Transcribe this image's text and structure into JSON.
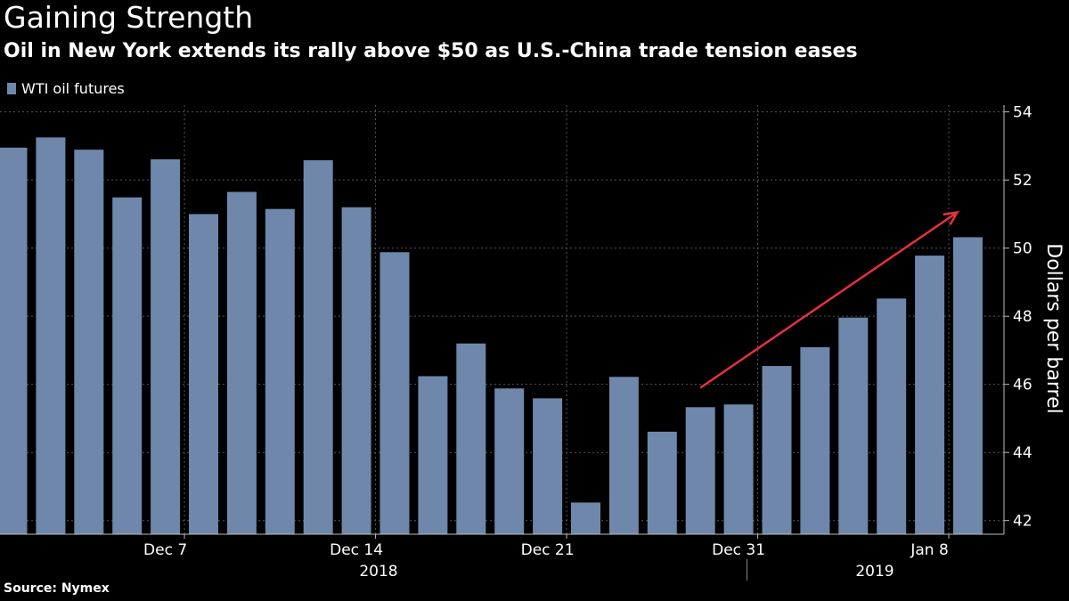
{
  "title": "Gaining Strength",
  "subtitle": "Oil in New York extends its rally above $50 as U.S.-China trade tension eases",
  "source": "Source: Nymex",
  "colors": {
    "background": "#000000",
    "bar": "#6e87ab",
    "grid": "#555555",
    "arrow": "#e8313e",
    "text": "#ffffff"
  },
  "chart_data": {
    "type": "bar",
    "legend": {
      "label": "WTI oil futures",
      "placement": "top-left"
    },
    "categories": [
      "2018-12-03",
      "2018-12-04",
      "2018-12-05",
      "2018-12-06",
      "2018-12-07",
      "2018-12-10",
      "2018-12-11",
      "2018-12-12",
      "2018-12-13",
      "2018-12-14",
      "2018-12-17",
      "2018-12-18",
      "2018-12-19",
      "2018-12-20",
      "2018-12-21",
      "2018-12-24",
      "2018-12-26",
      "2018-12-27",
      "2018-12-28",
      "2018-12-31",
      "2019-01-02",
      "2019-01-03",
      "2019-01-04",
      "2019-01-07",
      "2019-01-08",
      "2019-01-09"
    ],
    "series": [
      {
        "name": "WTI oil futures",
        "values": [
          52.95,
          53.25,
          52.89,
          51.49,
          52.61,
          51.0,
          51.65,
          51.15,
          52.58,
          51.2,
          49.88,
          46.24,
          47.2,
          45.88,
          45.59,
          42.53,
          46.22,
          44.61,
          45.33,
          45.41,
          46.54,
          47.09,
          47.96,
          48.52,
          49.78,
          50.32
        ]
      }
    ],
    "xlabel": "",
    "ylabel": "Dollars per barrel",
    "ylim": [
      41.6,
      54.2
    ],
    "yticks": [
      42,
      44,
      46,
      48,
      50,
      52,
      54
    ],
    "xtick_labels": [
      {
        "label": "Dec 7",
        "category": "2018-12-07"
      },
      {
        "label": "Dec 14",
        "category": "2018-12-14"
      },
      {
        "label": "Dec 21",
        "category": "2018-12-21"
      },
      {
        "label": "Dec 31",
        "category": "2018-12-31"
      },
      {
        "label": "Jan 8",
        "category": "2019-01-08"
      }
    ],
    "year_labels": [
      "2018",
      "2019"
    ],
    "grid": true,
    "y_axis_side": "right",
    "annotation": {
      "type": "arrow",
      "description": "upward trend arrow",
      "from": {
        "category": "2018-12-28",
        "value": 45.9
      },
      "to": {
        "category": "2019-01-09",
        "value": 51.05
      }
    }
  }
}
